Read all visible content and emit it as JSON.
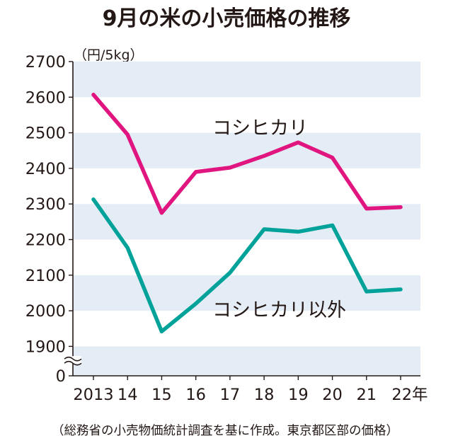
{
  "chart_data": {
    "type": "line",
    "title": "9月の米の小売価格の推移",
    "unit_label": "（円/5kg）",
    "x": [
      2013,
      14,
      15,
      16,
      17,
      18,
      19,
      20,
      21,
      22
    ],
    "x_tick_labels": [
      "2013",
      "14",
      "15",
      "16",
      "17",
      "18",
      "19",
      "20",
      "21",
      "22年"
    ],
    "y_tick_labels": [
      "2700",
      "2600",
      "2500",
      "2400",
      "2300",
      "2200",
      "2100",
      "2000",
      "1900",
      "0"
    ],
    "ylim": [
      1900,
      2700
    ],
    "axis_break": true,
    "grid": "alternating horizontal bands",
    "series": [
      {
        "name": "コシヒカリ",
        "color": "#e0157f",
        "values": [
          2607,
          2495,
          2275,
          2390,
          2402,
          2435,
          2473,
          2430,
          2287,
          2291
        ]
      },
      {
        "name": "コシヒカリ以外",
        "color": "#00a29a",
        "values": [
          2313,
          2177,
          1942,
          2020,
          2107,
          2229,
          2222,
          2240,
          2054,
          2060
        ]
      }
    ],
    "source_note": "（総務省の小売物価統計調査を基に作成。東京都区部の価格）"
  }
}
